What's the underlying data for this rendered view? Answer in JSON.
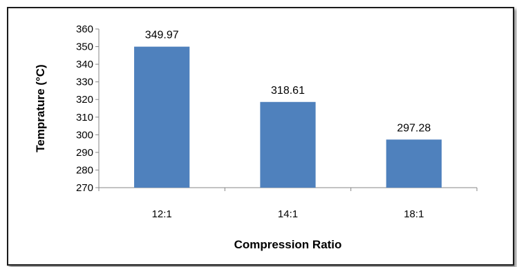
{
  "chart_data": {
    "type": "bar",
    "categories": [
      "12:1",
      "14:1",
      "18:1"
    ],
    "values": [
      349.97,
      318.61,
      297.28
    ],
    "data_labels": [
      "349.97",
      "318.61",
      "297.28"
    ],
    "title": "",
    "xlabel": "Compression Ratio",
    "ylabel": "Temprature (°C)",
    "ylim": [
      270,
      360
    ],
    "yticks": [
      270,
      280,
      290,
      300,
      310,
      320,
      330,
      340,
      350,
      360
    ],
    "grid": false,
    "legend": "none",
    "bar_color": "#4f81bd"
  }
}
